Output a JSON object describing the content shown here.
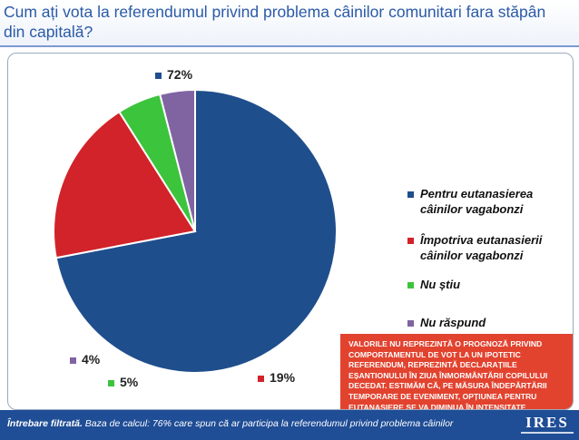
{
  "title": "Cum ați vota la referendumul privind problema câinilor comunitari fara stăpân din capitală?",
  "chart_data": {
    "type": "pie",
    "title": "Cum ați vota la referendumul privind problema câinilor comunitari fara stăpân din capitală?",
    "start": "12 o'clock, clockwise",
    "slices": [
      {
        "label": "Pentru eutanasierea câinilor vagabonzi",
        "value": 72,
        "display": "72%",
        "color": "#1f4e8c"
      },
      {
        "label": "Împotriva eutanasierii câinilor vagabonzi",
        "value": 19,
        "display": "19%",
        "color": "#d2232a"
      },
      {
        "label": "Nu știu",
        "value": 5,
        "display": "5%",
        "color": "#3cc43c"
      },
      {
        "label": "Nu răspund",
        "value": 4,
        "display": "4%",
        "color": "#8064a2"
      }
    ],
    "legend_position": "right"
  },
  "note": "VALORILE NU REPREZINTĂ O PROGNOZĂ PRIVIND COMPORTAMENTUL DE VOT LA UN IPOTETIC REFERENDUM, REPREZINTĂ DECLARAȚIILE EȘANTIONULUI ÎN ZIUA ÎNMORMÂNTĂRII COPILULUI DECEDAT. ESTIMĂM CĂ, PE MĂSURA ÎNDEPĂRTĂRII TEMPORARE DE EVENIMENT, OPȚIUNEA PENTRU EUTANASIERE SE VA DIMINUA ÎN INTENSITATE",
  "footer": {
    "label": "Întrebare filtrată.",
    "text": " Baza de calcul: 76% care spun că  ar participa la referendumul privind problema câinilor"
  },
  "logo": "IRES"
}
